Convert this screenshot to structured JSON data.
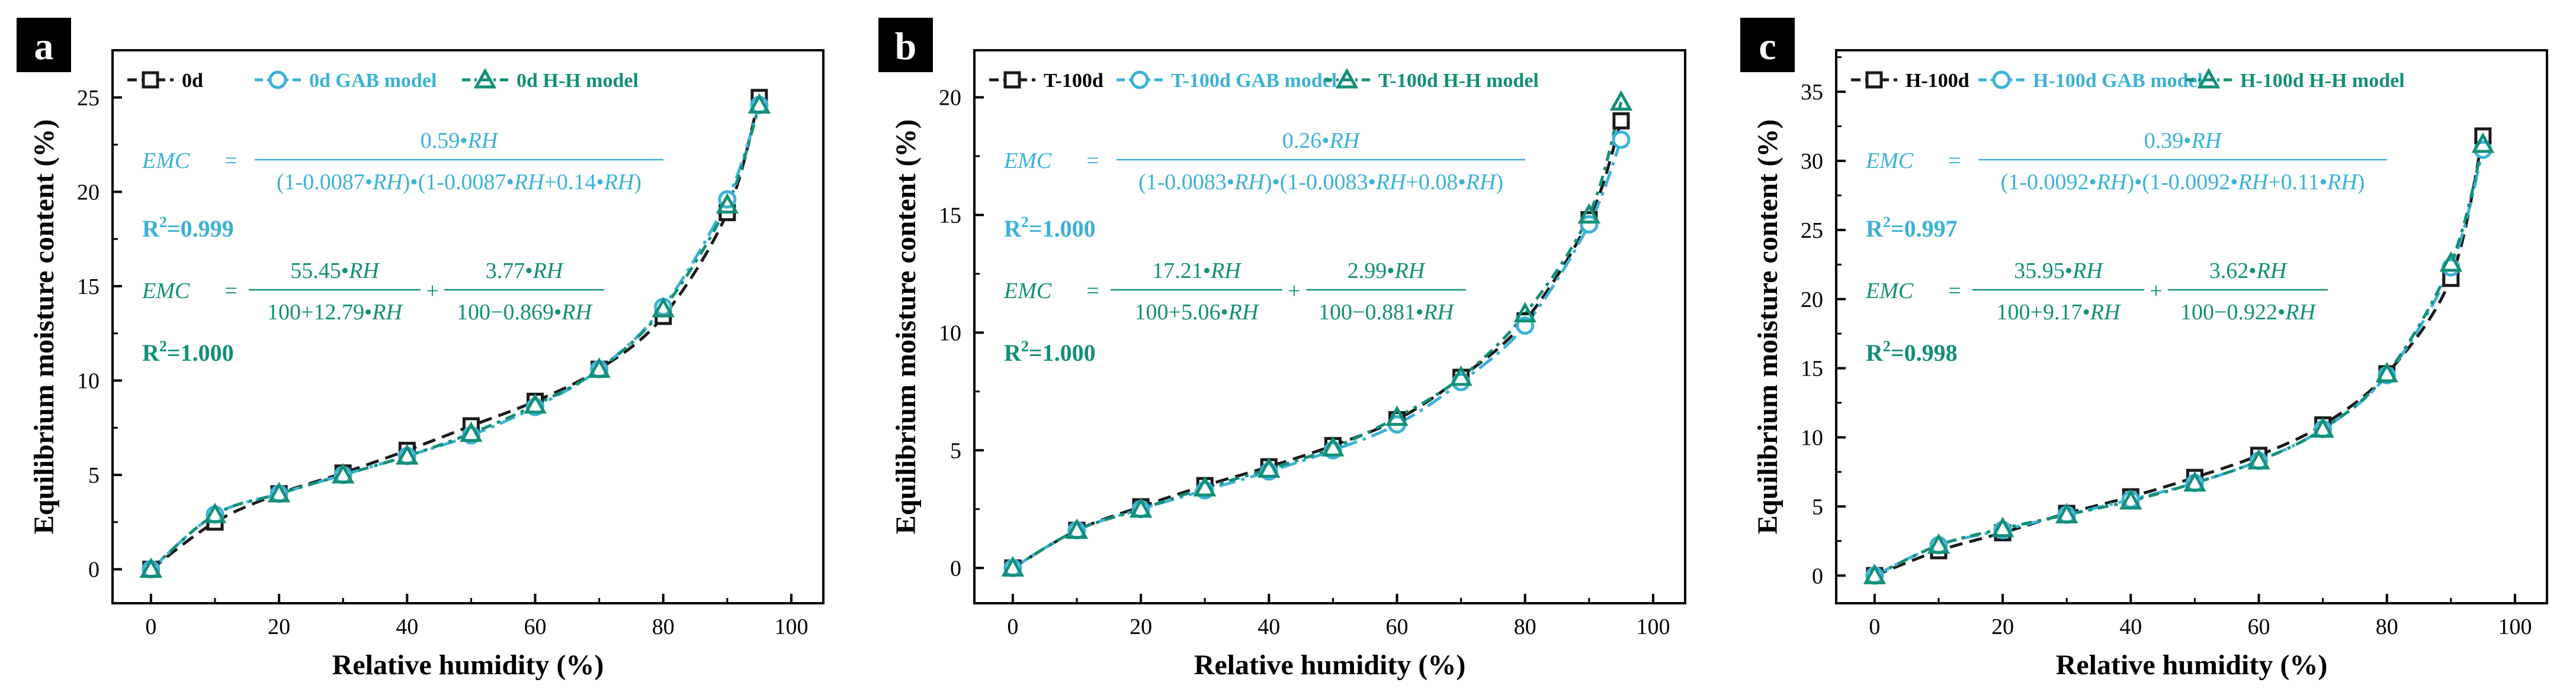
{
  "colors": {
    "measured": "#1a1a1a",
    "gab": "#3bb2d6",
    "hh": "#138f78",
    "label_bg": "#000000",
    "label_fg": "#ffffff"
  },
  "icons": {
    "measured": "square-marker-icon",
    "gab": "circle-marker-icon",
    "hh": "triangle-marker-icon"
  },
  "chart_data": [
    {
      "type": "line",
      "panel_label": "a",
      "xlabel": "Relative humidity (%)",
      "ylabel": "Equilibrium moisture content (%)",
      "xlim": [
        -6,
        105
      ],
      "ylim": [
        -1.8,
        27.5
      ],
      "xticks": [
        0,
        20,
        40,
        60,
        80,
        100
      ],
      "xtick_labels": [
        "0",
        "20",
        "40",
        "60",
        "80",
        "100"
      ],
      "yticks": [
        0,
        5,
        10,
        15,
        20,
        25
      ],
      "ytick_labels": [
        "0",
        "5",
        "10",
        "15",
        "20",
        "25"
      ],
      "legend": [
        "0d",
        "0d GAB model",
        "0d H-H model"
      ],
      "series": [
        {
          "name": "0d",
          "x": [
            0,
            10,
            20,
            30,
            40,
            50,
            60,
            70,
            80,
            90,
            95
          ],
          "y": [
            0,
            2.5,
            4.0,
            5.1,
            6.3,
            7.6,
            8.9,
            10.6,
            13.4,
            18.9,
            25.0
          ]
        },
        {
          "name": "0d GAB model",
          "x": [
            0,
            10,
            20,
            30,
            40,
            50,
            60,
            70,
            80,
            90,
            95
          ],
          "y": [
            0,
            2.9,
            4.0,
            5.0,
            6.0,
            7.1,
            8.6,
            10.6,
            13.9,
            19.6,
            24.6
          ]
        },
        {
          "name": "0d H-H model",
          "x": [
            0,
            10,
            20,
            30,
            40,
            50,
            60,
            70,
            80,
            90,
            95
          ],
          "y": [
            0,
            2.9,
            4.0,
            5.0,
            6.0,
            7.2,
            8.7,
            10.6,
            13.8,
            19.3,
            24.6
          ]
        }
      ],
      "gab_equation": {
        "lhs": "EMC",
        "equals": "=",
        "numerator": "0.59•RH",
        "denominator": "(1-0.0087•RH)•(1-0.0087•RH+0.14•RH)",
        "r2_label": "R",
        "r2_sup": "2",
        "r2_value": "=0.999"
      },
      "hh_equation": {
        "lhs": "EMC",
        "equals": "=",
        "num1": "55.45•RH",
        "den1": "100+12.79•RH",
        "plus": "+",
        "num2": "3.77•RH",
        "den2": "100−0.869•RH",
        "r2_label": "R",
        "r2_sup": "2",
        "r2_value": "=1.000"
      }
    },
    {
      "type": "line",
      "panel_label": "b",
      "xlabel": "Relative humidity (%)",
      "ylabel": "Equilibrium moisture content (%)",
      "xlim": [
        -6,
        105
      ],
      "ylim": [
        -1.5,
        22
      ],
      "xticks": [
        0,
        20,
        40,
        60,
        80,
        100
      ],
      "xtick_labels": [
        "0",
        "20",
        "40",
        "60",
        "80",
        "100"
      ],
      "yticks": [
        0,
        5,
        10,
        15,
        20
      ],
      "ytick_labels": [
        "0",
        "5",
        "10",
        "15",
        "20"
      ],
      "legend": [
        "T-100d",
        "T-100d GAB model",
        "T-100d H-H model"
      ],
      "series": [
        {
          "name": "T-100d",
          "x": [
            0,
            10,
            20,
            30,
            40,
            50,
            60,
            70,
            80,
            90,
            95
          ],
          "y": [
            0,
            1.6,
            2.6,
            3.5,
            4.3,
            5.2,
            6.3,
            8.1,
            10.5,
            14.8,
            19.0
          ]
        },
        {
          "name": "T-100d GAB model",
          "x": [
            0,
            10,
            20,
            30,
            40,
            50,
            60,
            70,
            80,
            90,
            95
          ],
          "y": [
            0,
            1.6,
            2.5,
            3.3,
            4.1,
            5.0,
            6.1,
            7.9,
            10.3,
            14.6,
            18.2
          ]
        },
        {
          "name": "T-100d H-H model",
          "x": [
            0,
            10,
            20,
            30,
            40,
            50,
            60,
            70,
            80,
            90,
            95
          ],
          "y": [
            0,
            1.6,
            2.5,
            3.4,
            4.2,
            5.1,
            6.4,
            8.1,
            10.8,
            15.0,
            19.8
          ]
        }
      ],
      "gab_equation": {
        "lhs": "EMC",
        "equals": "=",
        "numerator": "0.26•RH",
        "denominator": "(1-0.0083•RH)•(1-0.0083•RH+0.08•RH)",
        "r2_label": "R",
        "r2_sup": "2",
        "r2_value": "=1.000"
      },
      "hh_equation": {
        "lhs": "EMC",
        "equals": "=",
        "num1": "17.21•RH",
        "den1": "100+5.06•RH",
        "plus": "+",
        "num2": "2.99•RH",
        "den2": "100−0.881•RH",
        "r2_label": "R",
        "r2_sup": "2",
        "r2_value": "=1.000"
      }
    },
    {
      "type": "line",
      "panel_label": "c",
      "xlabel": "Relative humidity (%)",
      "ylabel": "Equilibrium moisture content (%)",
      "xlim": [
        -6,
        105
      ],
      "ylim": [
        -2,
        38
      ],
      "xticks": [
        0,
        20,
        40,
        60,
        80,
        100
      ],
      "xtick_labels": [
        "0",
        "20",
        "40",
        "60",
        "80",
        "100"
      ],
      "yticks": [
        0,
        5,
        10,
        15,
        20,
        25,
        30,
        35
      ],
      "ytick_labels": [
        "0",
        "5",
        "10",
        "15",
        "20",
        "25",
        "30",
        "35"
      ],
      "legend": [
        "H-100d",
        "H-100d GAB model",
        "H-100d H-H model"
      ],
      "series": [
        {
          "name": "H-100d",
          "x": [
            0,
            10,
            20,
            30,
            40,
            50,
            60,
            70,
            80,
            90,
            95
          ],
          "y": [
            0,
            1.8,
            3.1,
            4.5,
            5.7,
            7.1,
            8.7,
            10.9,
            14.6,
            21.5,
            31.8
          ]
        },
        {
          "name": "H-100d GAB model",
          "x": [
            0,
            10,
            20,
            30,
            40,
            50,
            60,
            70,
            80,
            90,
            95
          ],
          "y": [
            0,
            2.2,
            3.3,
            4.4,
            5.5,
            6.7,
            8.3,
            10.6,
            14.5,
            22.3,
            30.8
          ]
        },
        {
          "name": "H-100d H-H model",
          "x": [
            0,
            10,
            20,
            30,
            40,
            50,
            60,
            70,
            80,
            90,
            95
          ],
          "y": [
            0,
            2.2,
            3.4,
            4.4,
            5.4,
            6.7,
            8.3,
            10.6,
            14.6,
            22.6,
            31.2
          ]
        }
      ],
      "gab_equation": {
        "lhs": "EMC",
        "equals": "=",
        "numerator": "0.39•RH",
        "denominator": "(1-0.0092•RH)•(1-0.0092•RH+0.11•RH)",
        "r2_label": "R",
        "r2_sup": "2",
        "r2_value": "=0.997"
      },
      "hh_equation": {
        "lhs": "EMC",
        "equals": "=",
        "num1": "35.95•RH",
        "den1": "100+9.17•RH",
        "plus": "+",
        "num2": "3.62•RH",
        "den2": "100−0.922•RH",
        "r2_label": "R",
        "r2_sup": "2",
        "r2_value": "=0.998"
      }
    }
  ]
}
